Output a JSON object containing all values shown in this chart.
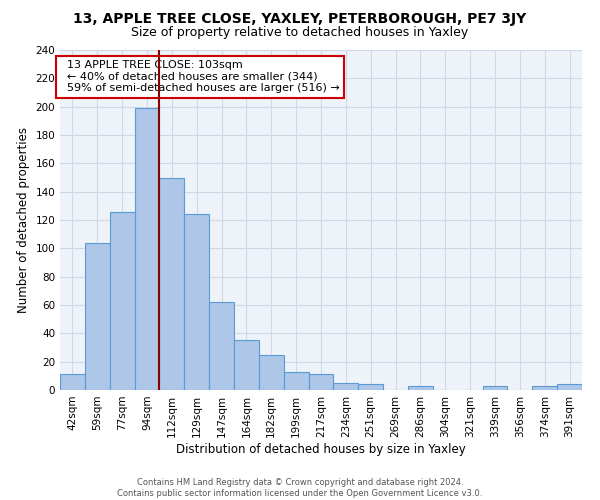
{
  "title": "13, APPLE TREE CLOSE, YAXLEY, PETERBOROUGH, PE7 3JY",
  "subtitle": "Size of property relative to detached houses in Yaxley",
  "xlabel": "Distribution of detached houses by size in Yaxley",
  "ylabel": "Number of detached properties",
  "footer_line1": "Contains HM Land Registry data © Crown copyright and database right 2024.",
  "footer_line2": "Contains public sector information licensed under the Open Government Licence v3.0.",
  "annotation_line1": "13 APPLE TREE CLOSE: 103sqm",
  "annotation_line2": "← 40% of detached houses are smaller (344)",
  "annotation_line3": "59% of semi-detached houses are larger (516) →",
  "bar_labels": [
    "42sqm",
    "59sqm",
    "77sqm",
    "94sqm",
    "112sqm",
    "129sqm",
    "147sqm",
    "164sqm",
    "182sqm",
    "199sqm",
    "217sqm",
    "234sqm",
    "251sqm",
    "269sqm",
    "286sqm",
    "304sqm",
    "321sqm",
    "339sqm",
    "356sqm",
    "374sqm",
    "391sqm"
  ],
  "bar_values": [
    11,
    104,
    126,
    199,
    150,
    124,
    62,
    35,
    25,
    13,
    11,
    5,
    4,
    0,
    3,
    0,
    0,
    3,
    0,
    3,
    4
  ],
  "bar_color": "#aec6e8",
  "bar_edge_color": "#5b9bd5",
  "vline_color": "#8b0000",
  "ylim": [
    0,
    240
  ],
  "yticks": [
    0,
    20,
    40,
    60,
    80,
    100,
    120,
    140,
    160,
    180,
    200,
    220,
    240
  ],
  "background_color": "#ffffff",
  "grid_color": "#d0d8e8",
  "title_fontsize": 10,
  "subtitle_fontsize": 9,
  "axis_label_fontsize": 8.5,
  "tick_fontsize": 7.5,
  "annotation_fontsize": 8,
  "annotation_box_color": "#ffffff",
  "annotation_box_edge_color": "#cc0000",
  "footer_fontsize": 6
}
